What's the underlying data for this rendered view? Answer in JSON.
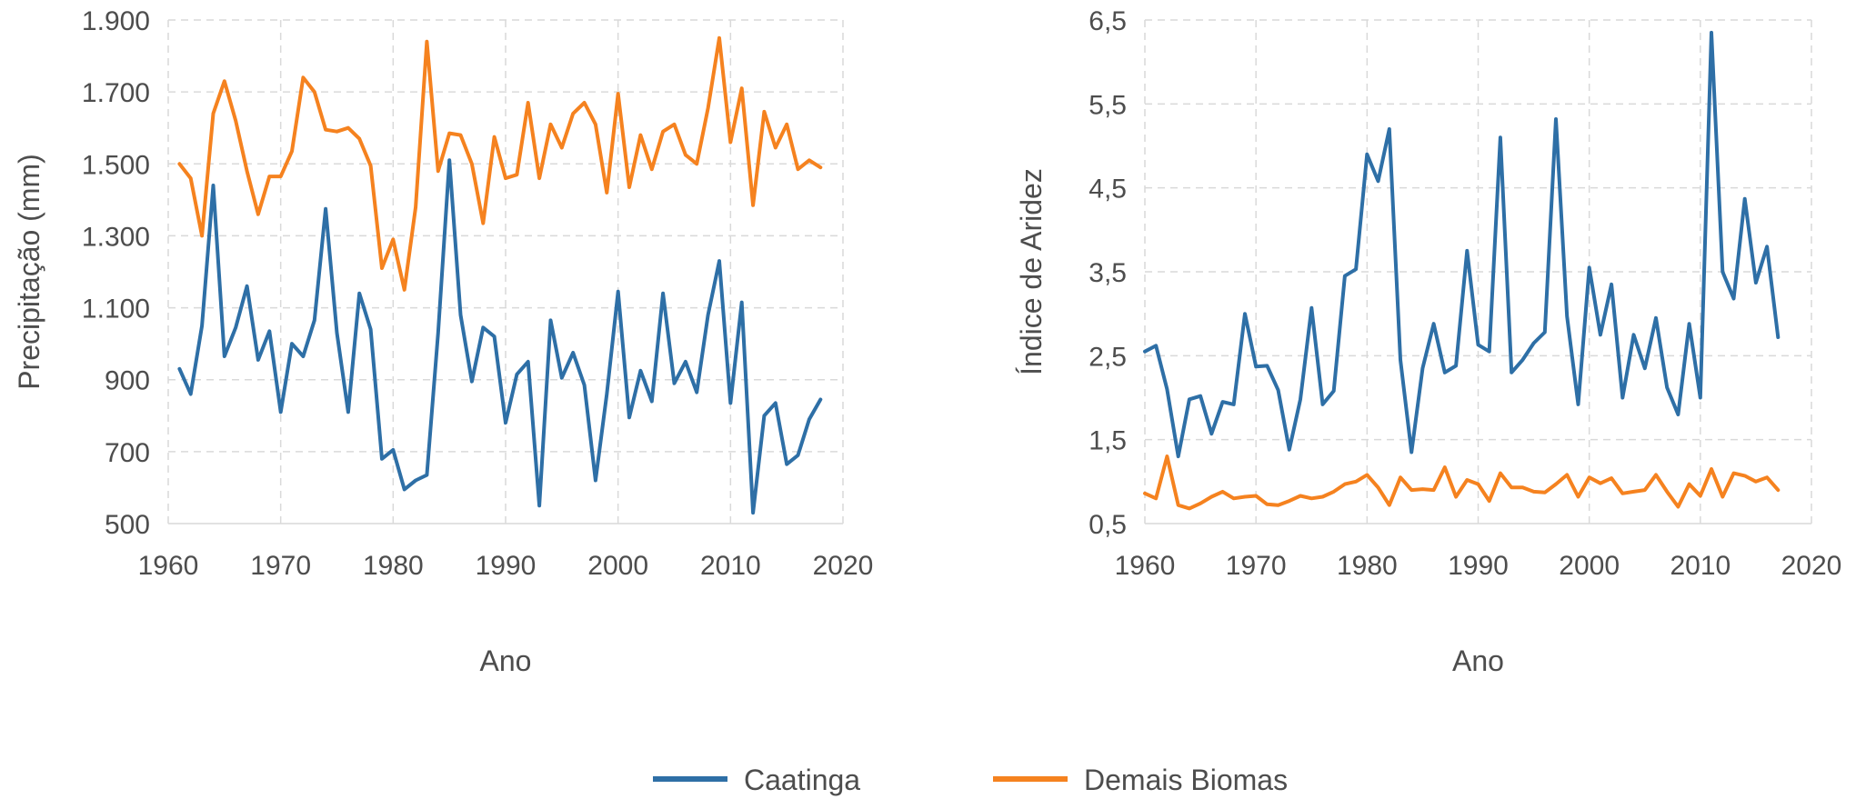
{
  "chart_data": [
    {
      "type": "line",
      "xlabel": "Ano",
      "ylabel": "Precipitação (mm)",
      "xlim": [
        1960,
        2020
      ],
      "ylim": [
        500,
        1900
      ],
      "x_ticks": [
        1960,
        1970,
        1980,
        1990,
        2000,
        2010,
        2020
      ],
      "x_tick_labels": [
        "1960",
        "1970",
        "1980",
        "1990",
        "2000",
        "2010",
        "2020"
      ],
      "y_ticks": [
        500,
        700,
        900,
        1100,
        1300,
        1500,
        1700,
        1900
      ],
      "y_tick_labels": [
        "500",
        "700",
        "900",
        "1.100",
        "1.300",
        "1.500",
        "1.700",
        "1.900"
      ],
      "grid": true,
      "x": [
        1961,
        1962,
        1963,
        1964,
        1965,
        1966,
        1967,
        1968,
        1969,
        1970,
        1971,
        1972,
        1973,
        1974,
        1975,
        1976,
        1977,
        1978,
        1979,
        1980,
        1981,
        1982,
        1983,
        1984,
        1985,
        1986,
        1987,
        1988,
        1989,
        1990,
        1991,
        1992,
        1993,
        1994,
        1995,
        1996,
        1997,
        1998,
        1999,
        2000,
        2001,
        2002,
        2003,
        2004,
        2005,
        2006,
        2007,
        2008,
        2009,
        2010,
        2011,
        2012,
        2013,
        2014,
        2015,
        2016,
        2017,
        2018
      ],
      "series": [
        {
          "name": "Caatinga",
          "color": "#2e6fa6",
          "values": [
            930,
            860,
            1050,
            1440,
            965,
            1045,
            1160,
            955,
            1035,
            810,
            1000,
            965,
            1065,
            1375,
            1030,
            810,
            1140,
            1040,
            680,
            705,
            595,
            620,
            635,
            1030,
            1510,
            1080,
            895,
            1045,
            1020,
            780,
            915,
            950,
            550,
            1065,
            905,
            975,
            885,
            620,
            860,
            1145,
            795,
            925,
            840,
            1140,
            890,
            950,
            865,
            1080,
            1230,
            835,
            1115,
            530,
            800,
            835,
            665,
            690,
            790,
            845
          ]
        },
        {
          "name": "Demais Biomas",
          "color": "#f5821f",
          "values": [
            1500,
            1460,
            1300,
            1640,
            1730,
            1620,
            1480,
            1360,
            1465,
            1465,
            1535,
            1740,
            1700,
            1595,
            1590,
            1600,
            1570,
            1495,
            1210,
            1290,
            1150,
            1380,
            1840,
            1480,
            1585,
            1580,
            1500,
            1335,
            1575,
            1460,
            1470,
            1670,
            1460,
            1610,
            1545,
            1640,
            1670,
            1610,
            1420,
            1695,
            1435,
            1580,
            1485,
            1590,
            1610,
            1525,
            1500,
            1655,
            1850,
            1560,
            1710,
            1385,
            1645,
            1545,
            1610,
            1485,
            1510,
            1490
          ]
        }
      ]
    },
    {
      "type": "line",
      "xlabel": "Ano",
      "ylabel": "Índice de Aridez",
      "xlim": [
        1960,
        2020
      ],
      "ylim": [
        0.5,
        6.5
      ],
      "x_ticks": [
        1960,
        1970,
        1980,
        1990,
        2000,
        2010,
        2020
      ],
      "x_tick_labels": [
        "1960",
        "1970",
        "1980",
        "1990",
        "2000",
        "2010",
        "2020"
      ],
      "y_ticks": [
        0.5,
        1.5,
        2.5,
        3.5,
        4.5,
        5.5,
        6.5
      ],
      "y_tick_labels": [
        "0,5",
        "1,5",
        "2,5",
        "3,5",
        "4,5",
        "5,5",
        "6,5"
      ],
      "grid": true,
      "x": [
        1960,
        1961,
        1962,
        1963,
        1964,
        1965,
        1966,
        1967,
        1968,
        1969,
        1970,
        1971,
        1972,
        1973,
        1974,
        1975,
        1976,
        1977,
        1978,
        1979,
        1980,
        1981,
        1982,
        1983,
        1984,
        1985,
        1986,
        1987,
        1988,
        1989,
        1990,
        1991,
        1992,
        1993,
        1994,
        1995,
        1996,
        1997,
        1998,
        1999,
        2000,
        2001,
        2002,
        2003,
        2004,
        2005,
        2006,
        2007,
        2008,
        2009,
        2010,
        2011,
        2012,
        2013,
        2014,
        2015,
        2016,
        2017
      ],
      "series": [
        {
          "name": "Caatinga",
          "color": "#2e6fa6",
          "values": [
            2.55,
            2.62,
            2.1,
            1.3,
            1.98,
            2.02,
            1.57,
            1.95,
            1.92,
            3.0,
            2.37,
            2.38,
            2.09,
            1.38,
            1.98,
            3.07,
            1.92,
            2.08,
            3.45,
            3.53,
            4.9,
            4.58,
            5.2,
            2.45,
            1.35,
            2.35,
            2.88,
            2.3,
            2.38,
            3.75,
            2.63,
            2.55,
            5.1,
            2.3,
            2.45,
            2.65,
            2.78,
            5.32,
            2.97,
            1.92,
            3.55,
            2.75,
            3.35,
            2.0,
            2.75,
            2.35,
            2.95,
            2.12,
            1.8,
            2.88,
            2.0,
            6.35,
            3.5,
            3.18,
            4.37,
            3.37,
            3.8,
            2.72
          ]
        },
        {
          "name": "Demais Biomas",
          "color": "#f5821f",
          "values": [
            0.86,
            0.8,
            1.3,
            0.72,
            0.68,
            0.74,
            0.82,
            0.88,
            0.8,
            0.82,
            0.83,
            0.73,
            0.72,
            0.77,
            0.83,
            0.8,
            0.82,
            0.88,
            0.97,
            1.0,
            1.08,
            0.93,
            0.72,
            1.05,
            0.9,
            0.91,
            0.9,
            1.17,
            0.82,
            1.02,
            0.97,
            0.77,
            1.1,
            0.93,
            0.93,
            0.88,
            0.87,
            0.97,
            1.08,
            0.82,
            1.05,
            0.98,
            1.04,
            0.86,
            0.88,
            0.9,
            1.08,
            0.88,
            0.7,
            0.97,
            0.83,
            1.15,
            0.82,
            1.1,
            1.07,
            1.0,
            1.05,
            0.9
          ]
        }
      ]
    }
  ],
  "legend": {
    "position": "bottom-center",
    "items": [
      {
        "label": "Caatinga",
        "color": "#2e6fa6"
      },
      {
        "label": "Demais Biomas",
        "color": "#f5821f"
      }
    ]
  }
}
